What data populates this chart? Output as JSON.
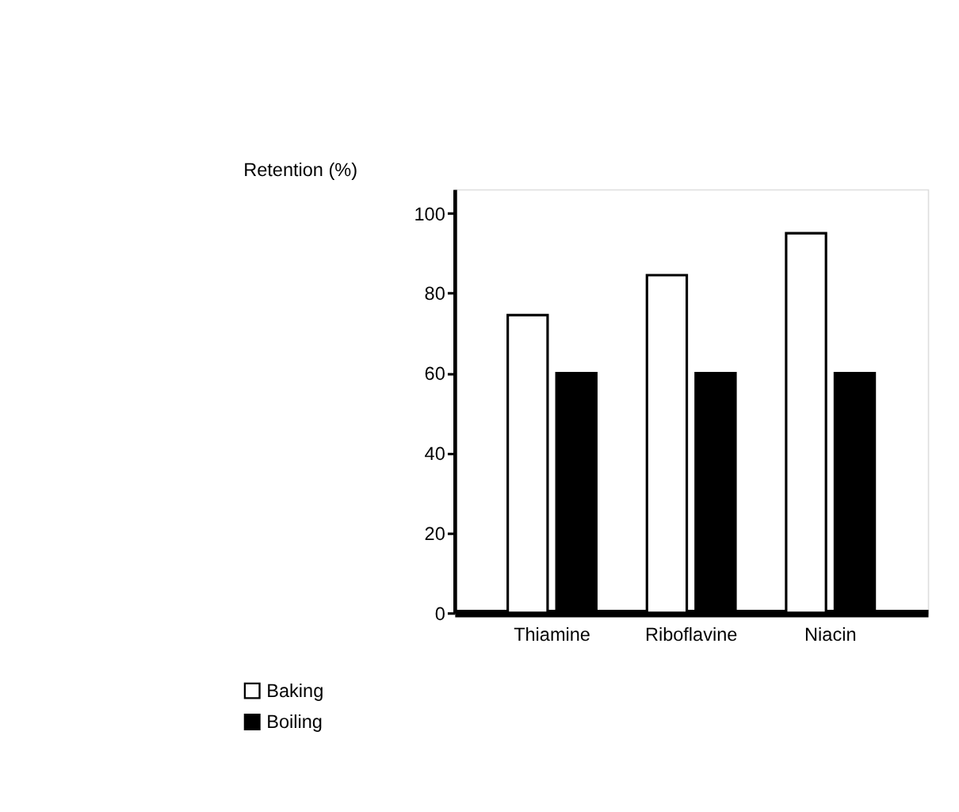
{
  "chart_data": {
    "type": "bar",
    "ylabel": "Retention (%)",
    "categories": [
      "Thiamine",
      "Riboflavine",
      "Niacin"
    ],
    "series": [
      {
        "name": "Baking",
        "color": "#ffffff",
        "values": [
          74.5,
          84.5,
          95
        ]
      },
      {
        "name": "Boiling",
        "color": "#000000",
        "values": [
          60,
          60,
          60
        ]
      }
    ],
    "ylim": [
      0,
      106
    ],
    "yticks": [
      0,
      20,
      40,
      60,
      80,
      100
    ],
    "grid": false,
    "legend": "bottom left"
  }
}
